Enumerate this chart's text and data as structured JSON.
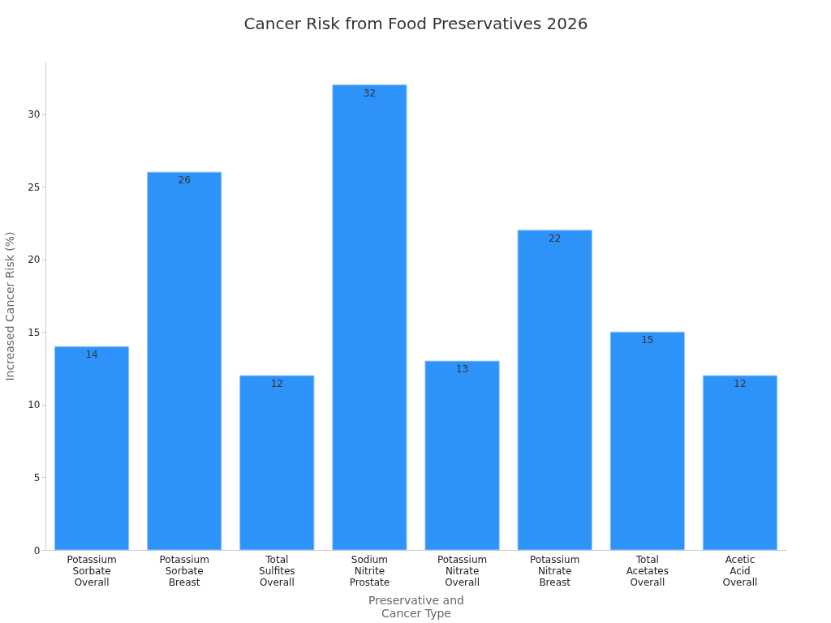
{
  "chart_data": {
    "type": "bar",
    "title": "Cancer Risk from Food Preservatives 2026",
    "xlabel": "Preservative and Cancer Type",
    "ylabel": "Increased Cancer Risk (%)",
    "categories": [
      "Potassium Sorbate Overall",
      "Potassium Sorbate Breast",
      "Total Sulfites Overall",
      "Sodium Nitrite Prostate",
      "Potassium Nitrate Overall",
      "Potassium Nitrate Breast",
      "Total Acetates Overall",
      "Acetic Acid Overall"
    ],
    "values": [
      14,
      26,
      12,
      32,
      13,
      22,
      15,
      12
    ],
    "color": "#2e93f9",
    "ylim": [
      0,
      33.6
    ],
    "yticks": [
      0,
      5,
      10,
      15,
      20,
      25,
      30
    ],
    "grid": false,
    "data_labels": true
  }
}
